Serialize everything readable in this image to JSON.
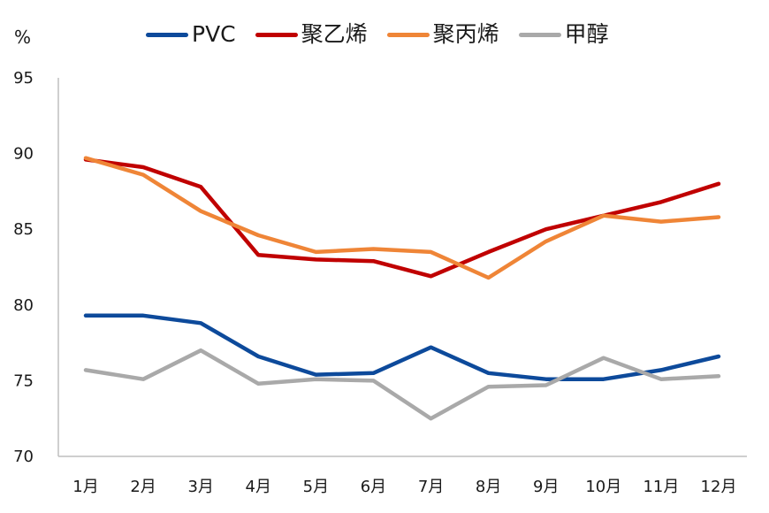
{
  "chart_data": {
    "type": "line",
    "title": "",
    "unit_label": "%",
    "xlabel": "",
    "ylabel": "%",
    "ylim": [
      70,
      95
    ],
    "yticks": [
      70,
      75,
      80,
      85,
      90,
      95
    ],
    "grid": false,
    "legend_position": "top",
    "categories": [
      "1月",
      "2月",
      "3月",
      "4月",
      "5月",
      "6月",
      "7月",
      "8月",
      "9月",
      "10月",
      "11月",
      "12月"
    ],
    "series": [
      {
        "name": "PVC",
        "color": "#0d4a9b",
        "values": [
          79.3,
          79.3,
          78.8,
          76.6,
          75.4,
          75.5,
          77.2,
          75.5,
          75.1,
          75.1,
          75.7,
          76.6
        ]
      },
      {
        "name": "聚乙烯",
        "color": "#c00000",
        "values": [
          89.6,
          89.1,
          87.8,
          83.3,
          83.0,
          82.9,
          81.9,
          83.5,
          85.0,
          85.9,
          86.8,
          88.0
        ]
      },
      {
        "name": "聚丙烯",
        "color": "#ef8537",
        "values": [
          89.7,
          88.6,
          86.2,
          84.6,
          83.5,
          83.7,
          83.5,
          81.8,
          84.2,
          85.9,
          85.5,
          85.8
        ]
      },
      {
        "name": "甲醇",
        "color": "#a9a9a9",
        "values": [
          75.7,
          75.1,
          77.0,
          74.8,
          75.1,
          75.0,
          72.5,
          74.6,
          74.7,
          76.5,
          75.1,
          75.3
        ]
      }
    ]
  },
  "legend": {
    "items": [
      {
        "label": "PVC",
        "color": "#0d4a9b"
      },
      {
        "label": "聚乙烯",
        "color": "#c00000"
      },
      {
        "label": "聚丙烯",
        "color": "#ef8537"
      },
      {
        "label": "甲醇",
        "color": "#a9a9a9"
      }
    ]
  },
  "axis": {
    "unit": "%",
    "axis_color": "#bfbfbf"
  }
}
